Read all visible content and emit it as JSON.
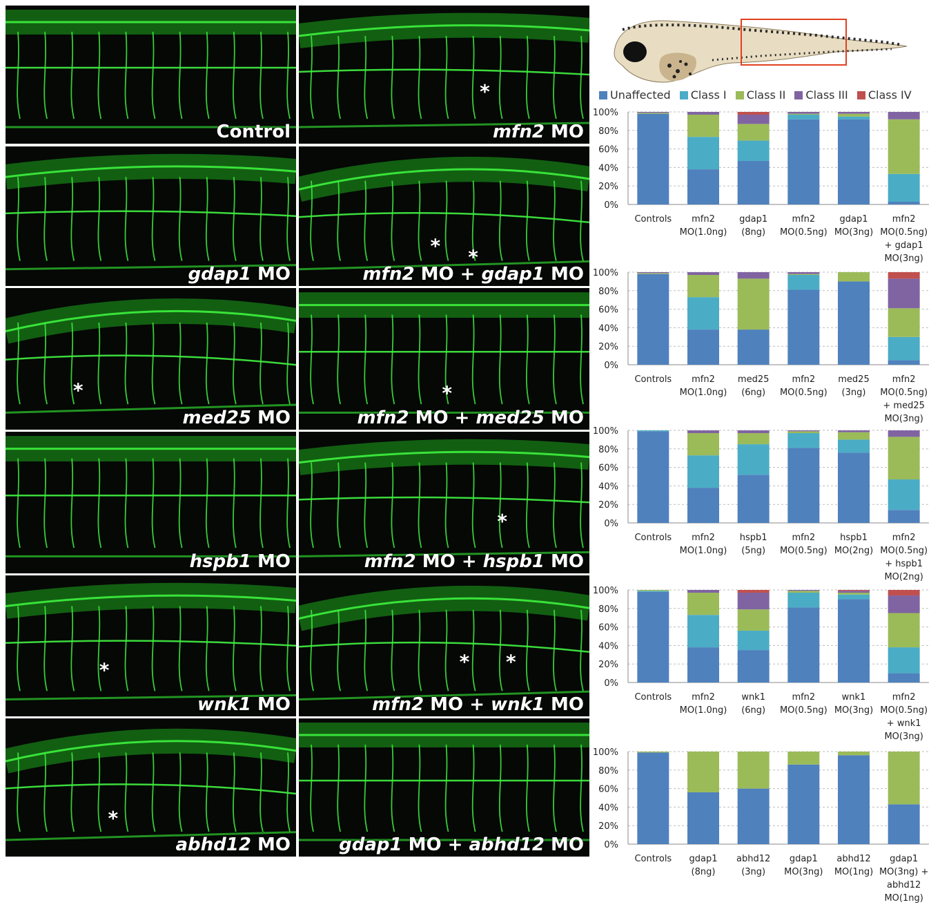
{
  "panels": [
    {
      "label": "Control",
      "parts": [
        [
          "Control",
          false
        ]
      ],
      "stars": []
    },
    {
      "label": "mfn2 MO",
      "parts": [
        [
          "mfn2",
          true
        ],
        [
          " MO",
          false
        ]
      ],
      "stars": [
        [
          0.64,
          0.62
        ]
      ]
    },
    {
      "label": "gdap1 MO",
      "parts": [
        [
          "gdap1",
          true
        ],
        [
          " MO",
          false
        ]
      ],
      "stars": []
    },
    {
      "label": "mfn2 MO + gdap1 MO",
      "parts": [
        [
          "mfn2",
          true
        ],
        [
          " MO + ",
          false
        ],
        [
          "gdap1",
          true
        ],
        [
          " MO",
          false
        ]
      ],
      "stars": [
        [
          0.47,
          0.71
        ],
        [
          0.6,
          0.79
        ]
      ]
    },
    {
      "label": "med25 MO",
      "parts": [
        [
          "med25",
          true
        ],
        [
          " MO",
          false
        ]
      ],
      "stars": [
        [
          0.25,
          0.72
        ]
      ]
    },
    {
      "label": "mfn2 MO + med25 MO",
      "parts": [
        [
          "mfn2",
          true
        ],
        [
          " MO + ",
          false
        ],
        [
          "med25",
          true
        ],
        [
          " MO",
          false
        ]
      ],
      "stars": [
        [
          0.51,
          0.74
        ]
      ]
    },
    {
      "label": "hspb1 MO",
      "parts": [
        [
          "hspb1",
          true
        ],
        [
          " MO",
          false
        ]
      ],
      "stars": []
    },
    {
      "label": "mfn2 MO + hspb1 MO",
      "parts": [
        [
          "mfn2",
          true
        ],
        [
          " MO + ",
          false
        ],
        [
          "hspb1",
          true
        ],
        [
          " MO",
          false
        ]
      ],
      "stars": [
        [
          0.7,
          0.63
        ]
      ]
    },
    {
      "label": "wnk1 MO",
      "parts": [
        [
          "wnk1",
          true
        ],
        [
          " MO",
          false
        ]
      ],
      "stars": [
        [
          0.34,
          0.67
        ]
      ]
    },
    {
      "label": "mfn2 MO + wnk1 MO",
      "parts": [
        [
          "mfn2",
          true
        ],
        [
          " MO + ",
          false
        ],
        [
          "wnk1",
          true
        ],
        [
          " MO",
          false
        ]
      ],
      "stars": [
        [
          0.57,
          0.61
        ],
        [
          0.73,
          0.61
        ]
      ]
    },
    {
      "label": "abhd12 MO",
      "parts": [
        [
          "abhd12",
          true
        ],
        [
          " MO",
          false
        ]
      ],
      "stars": [
        [
          0.37,
          0.72
        ]
      ]
    },
    {
      "label": "gdap1 MO + abhd12 MO",
      "parts": [
        [
          "gdap1",
          true
        ],
        [
          " MO + ",
          false
        ],
        [
          "abhd12",
          true
        ],
        [
          " MO",
          false
        ]
      ],
      "stars": []
    }
  ],
  "legend": [
    {
      "name": "Unaffected",
      "color": "#4f81bd"
    },
    {
      "name": "Class I",
      "color": "#4bacc6"
    },
    {
      "name": "Class II",
      "color": "#9bbb59"
    },
    {
      "name": "Class III",
      "color": "#8064a2"
    },
    {
      "name": "Class IV",
      "color": "#c0504d"
    }
  ],
  "chart_data": [
    {
      "type": "bar",
      "stacked": true,
      "yticks": [
        "100%",
        "80%",
        "60%",
        "40%",
        "20%",
        "0%"
      ],
      "ylim": [
        0,
        100
      ],
      "categories": [
        "Controls",
        "mfn2\nMO(1.0ng)",
        "gdap1\n(8ng)",
        "mfn2\nMO(0.5ng)",
        "gdap1\nMO(3ng)",
        "mfn2\nMO(0.5ng)\n+ gdap1\nMO(3ng)"
      ],
      "series": [
        {
          "name": "Unaffected",
          "values": [
            98,
            38,
            47,
            92,
            92,
            3
          ]
        },
        {
          "name": "Class I",
          "values": [
            0,
            35,
            22,
            5,
            3,
            30
          ]
        },
        {
          "name": "Class II",
          "values": [
            1,
            24,
            18,
            1,
            3,
            59
          ]
        },
        {
          "name": "Class III",
          "values": [
            1,
            3,
            10,
            2,
            2,
            8
          ]
        },
        {
          "name": "Class IV",
          "values": [
            0,
            0,
            3,
            0,
            0,
            0
          ]
        }
      ]
    },
    {
      "type": "bar",
      "stacked": true,
      "yticks": [
        "100%",
        "80%",
        "60%",
        "40%",
        "20%",
        "0%"
      ],
      "ylim": [
        0,
        100
      ],
      "categories": [
        "Controls",
        "mfn2\nMO(1.0ng)",
        "med25\n(6ng)",
        "mfn2\nMO(0.5ng)",
        "med25\n(3ng)",
        "mfn2\nMO(0.5ng)\n+ med25\nMO(3ng)"
      ],
      "series": [
        {
          "name": "Unaffected",
          "values": [
            98,
            38,
            38,
            81,
            90,
            5
          ]
        },
        {
          "name": "Class I",
          "values": [
            0,
            35,
            0,
            16,
            0,
            25
          ]
        },
        {
          "name": "Class II",
          "values": [
            1,
            24,
            55,
            1,
            10,
            31
          ]
        },
        {
          "name": "Class III",
          "values": [
            1,
            3,
            7,
            2,
            0,
            32
          ]
        },
        {
          "name": "Class IV",
          "values": [
            0,
            0,
            0,
            0,
            0,
            7
          ]
        }
      ]
    },
    {
      "type": "bar",
      "stacked": true,
      "yticks": [
        "100%",
        "80%",
        "60%",
        "40%",
        "20%",
        "0%"
      ],
      "ylim": [
        0,
        100
      ],
      "categories": [
        "Controls",
        "mfn2\nMO(1.0ng)",
        "hspb1\n(5ng)",
        "mfn2\nMO(0.5ng)",
        "hspb1\nMO(2ng)",
        "mfn2\nMO(0.5ng)\n+ hspb1\nMO(2ng)"
      ],
      "series": [
        {
          "name": "Unaffected",
          "values": [
            99,
            38,
            52,
            81,
            76,
            14
          ]
        },
        {
          "name": "Class I",
          "values": [
            1,
            35,
            33,
            16,
            14,
            33
          ]
        },
        {
          "name": "Class II",
          "values": [
            0,
            24,
            12,
            2,
            8,
            46
          ]
        },
        {
          "name": "Class III",
          "values": [
            0,
            3,
            3,
            1,
            2,
            7
          ]
        },
        {
          "name": "Class IV",
          "values": [
            0,
            0,
            0,
            0,
            0,
            0
          ]
        }
      ]
    },
    {
      "type": "bar",
      "stacked": true,
      "yticks": [
        "100%",
        "80%",
        "60%",
        "40%",
        "20%",
        "0%"
      ],
      "ylim": [
        0,
        100
      ],
      "categories": [
        "Controls",
        "mfn2\nMO(1.0ng)",
        "wnk1\n(6ng)",
        "mfn2\nMO(0.5ng)",
        "wnk1\nMO(3ng)",
        "mfn2\nMO(0.5ng)\n+ wnk1\nMO(3ng)"
      ],
      "series": [
        {
          "name": "Unaffected",
          "values": [
            98,
            38,
            35,
            81,
            90,
            10
          ]
        },
        {
          "name": "Class I",
          "values": [
            1,
            35,
            21,
            16,
            5,
            28
          ]
        },
        {
          "name": "Class II",
          "values": [
            1,
            24,
            23,
            2,
            2,
            37
          ]
        },
        {
          "name": "Class III",
          "values": [
            0,
            3,
            18,
            1,
            2,
            19
          ]
        },
        {
          "name": "Class IV",
          "values": [
            0,
            0,
            3,
            0,
            1,
            6
          ]
        }
      ]
    },
    {
      "type": "bar",
      "stacked": true,
      "yticks": [
        "100%",
        "80%",
        "60%",
        "40%",
        "20%",
        "0%"
      ],
      "ylim": [
        0,
        100
      ],
      "categories": [
        "Controls",
        "gdap1\n(8ng)",
        "abhd12\n(3ng)",
        "gdap1\nMO(3ng)",
        "abhd12\nMO(1ng)",
        "gdap1\nMO(3ng) +\nabhd12\nMO(1ng)"
      ],
      "series": [
        {
          "name": "Unaffected",
          "values": [
            99,
            56,
            60,
            86,
            96,
            43
          ]
        },
        {
          "name": "Class I",
          "values": [
            0,
            0,
            0,
            0,
            0,
            0
          ]
        },
        {
          "name": "Class II",
          "values": [
            1,
            44,
            40,
            14,
            4,
            57
          ]
        },
        {
          "name": "Class III",
          "values": [
            0,
            0,
            0,
            0,
            0,
            0
          ]
        },
        {
          "name": "Class IV",
          "values": [
            0,
            0,
            0,
            0,
            0,
            0
          ]
        }
      ]
    }
  ]
}
